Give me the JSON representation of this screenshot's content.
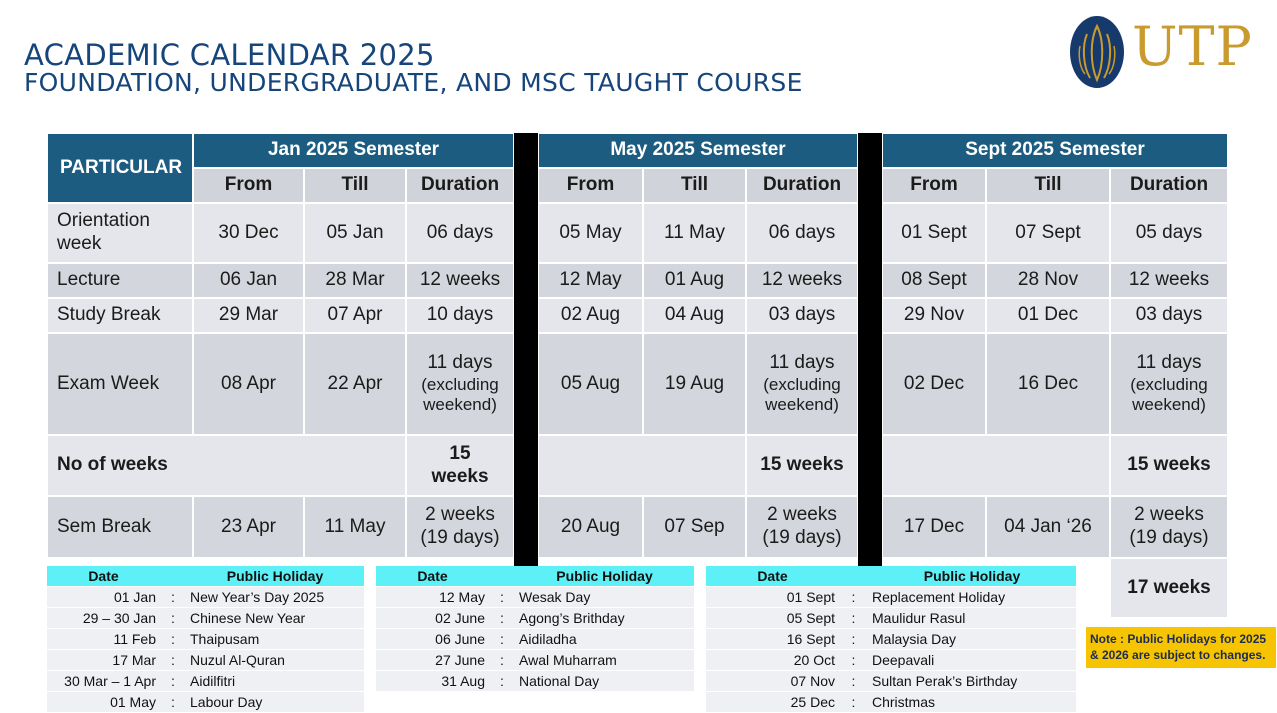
{
  "title": {
    "line1": "ACADEMIC CALENDAR 2025",
    "line2": "FOUNDATION, UNDERGRADUATE, AND MSC TAUGHT COURSE"
  },
  "logo": {
    "text": "UTP",
    "icon": "utp-seal-icon"
  },
  "calendar": {
    "particular_label": "PARTICULAR",
    "semesters": [
      "Jan  2025 Semester",
      "May 2025 Semester",
      "Sept 2025 Semester"
    ],
    "sub_headers": [
      "From",
      "Till",
      "Duration"
    ],
    "rows": {
      "orientation": {
        "label": "Orientation week",
        "jan": [
          "30 Dec",
          "05 Jan",
          "06 days"
        ],
        "may": [
          "05 May",
          "11 May",
          "06 days"
        ],
        "sept": [
          "01 Sept",
          "07 Sept",
          "05 days"
        ]
      },
      "lecture": {
        "label": "Lecture",
        "jan": [
          "06 Jan",
          "28 Mar",
          "12 weeks"
        ],
        "may": [
          "12 May",
          "01 Aug",
          "12 weeks"
        ],
        "sept": [
          "08 Sept",
          "28 Nov",
          "12 weeks"
        ]
      },
      "study_break": {
        "label": "Study Break",
        "jan": [
          "29 Mar",
          "07 Apr",
          "10 days"
        ],
        "may": [
          "02 Aug",
          "04 Aug",
          "03 days"
        ],
        "sept": [
          "29 Nov",
          "01 Dec",
          "03 days"
        ]
      },
      "exam_week": {
        "label": "Exam Week",
        "jan": [
          "08 Apr",
          "22 Apr",
          "11 days",
          "(excluding weekend)"
        ],
        "may": [
          "05 Aug",
          "19 Aug",
          "11 days",
          "(excluding weekend)"
        ],
        "sept": [
          "02 Dec",
          "16 Dec",
          "11 days",
          "(excluding weekend)"
        ]
      },
      "no_of_weeks": {
        "label": "No of weeks",
        "jan": "15 weeks",
        "may": "15 weeks",
        "sept": "15 weeks"
      },
      "sem_break": {
        "label": "Sem Break",
        "jan": [
          "23 Apr",
          "11 May",
          "2 weeks",
          "(19 days)"
        ],
        "may": [
          "20 Aug",
          "07 Sep",
          "2 weeks",
          "(19 days)"
        ],
        "sept": [
          "17 Dec",
          "04 Jan ‘26",
          "2 weeks",
          "(19 days)"
        ]
      },
      "extra": {
        "sept": "17 weeks"
      }
    }
  },
  "holidays": {
    "date_header": "Date",
    "holiday_header": "Public Holiday",
    "separator": ":",
    "jan": [
      [
        "01 Jan",
        "New Year’s Day 2025"
      ],
      [
        "29 – 30 Jan",
        "Chinese New Year"
      ],
      [
        "11 Feb",
        "Thaipusam"
      ],
      [
        "17 Mar",
        "Nuzul Al-Quran"
      ],
      [
        "30 Mar – 1 Apr",
        "Aidilfitri"
      ],
      [
        "01 May",
        "Labour Day"
      ]
    ],
    "may": [
      [
        "12 May",
        "Wesak Day"
      ],
      [
        "02 June",
        "Agong’s Brithday"
      ],
      [
        "06 June",
        "Aidiladha"
      ],
      [
        "27 June",
        "Awal Muharram"
      ],
      [
        "31 Aug",
        "National Day"
      ]
    ],
    "sept": [
      [
        "01 Sept",
        "Replacement Holiday"
      ],
      [
        "05 Sept",
        "Maulidur Rasul"
      ],
      [
        "16 Sept",
        "Malaysia Day"
      ],
      [
        "20 Oct",
        "Deepavali"
      ],
      [
        "07 Nov",
        "Sultan Perak’s Birthday"
      ],
      [
        "25 Dec",
        "Christmas"
      ]
    ]
  },
  "note": "Note : Public Holidays for 2025 & 2026 are subject to changes.",
  "colors": {
    "header": "#1c5c80",
    "title": "#15457a",
    "holiday_header": "#5ef0f7",
    "note_bg": "#f6c400",
    "logo_gold": "#c99a2e",
    "logo_navy": "#163a6b"
  }
}
